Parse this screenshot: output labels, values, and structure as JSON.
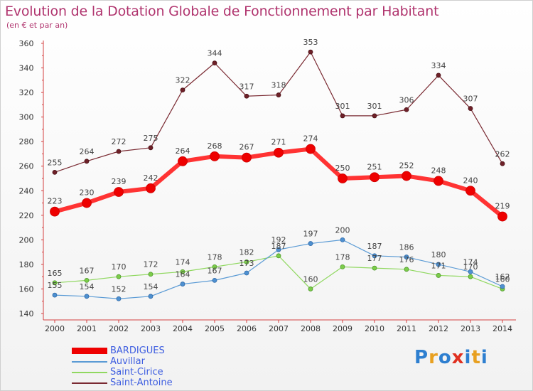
{
  "title": "Evolution de la Dotation Globale de Fonctionnement par Habitant",
  "subtitle": "(en € et par an)",
  "logo": "Proxiti",
  "chart_data": {
    "type": "line",
    "title": "Evolution de la Dotation Globale de Fonctionnement par Habitant",
    "subtitle": "(en € et par an)",
    "x": [
      "2000",
      "2001",
      "2002",
      "2003",
      "2004",
      "2005",
      "2006",
      "2007",
      "2008",
      "2009",
      "2010",
      "2011",
      "2012",
      "2013",
      "2014"
    ],
    "ylim": [
      140,
      360
    ],
    "yticks": [
      "140",
      "160",
      "180",
      "200",
      "220",
      "240",
      "260",
      "280",
      "300",
      "320",
      "340",
      "360"
    ],
    "grid": false,
    "legend_position": "bottom-left",
    "series": [
      {
        "name": "BARDIGUES",
        "color": "#ee0000",
        "values": [
          223,
          230,
          239,
          242,
          264,
          268,
          267,
          271,
          274,
          250,
          251,
          252,
          248,
          240,
          219
        ],
        "labels": [
          "223",
          "230",
          "239",
          "242",
          "264",
          "268",
          "267",
          "271",
          "274",
          "250",
          "251",
          "252",
          "248",
          "240",
          "219"
        ]
      },
      {
        "name": "Auvillar",
        "color": "#5b9bd5",
        "values": [
          155,
          154,
          152,
          154,
          164,
          167,
          173,
          192,
          197,
          200,
          187,
          186,
          180,
          174,
          162
        ],
        "labels": [
          "155",
          "154",
          "152",
          "154",
          "164",
          "167",
          "173",
          "192",
          "197",
          "200",
          "187",
          "186",
          "180",
          "174",
          "162"
        ]
      },
      {
        "name": "Saint-Cirice",
        "color": "#90d860",
        "values": [
          165,
          167,
          170,
          172,
          174,
          178,
          182,
          187,
          160,
          178,
          177,
          176,
          171,
          170,
          160
        ],
        "labels": [
          "165",
          "167",
          "170",
          "172",
          "174",
          "178",
          "182",
          "187",
          "160",
          "178",
          "177",
          "176",
          "171",
          "170",
          "160"
        ]
      },
      {
        "name": "Saint-Antoine",
        "color": "#7a2a32",
        "values": [
          255,
          264,
          272,
          275,
          322,
          344,
          317,
          318,
          353,
          301,
          301,
          306,
          334,
          307,
          262
        ],
        "labels": [
          "255",
          "264",
          "272",
          "275",
          "322",
          "344",
          "317",
          "318",
          "353",
          "301",
          "301",
          "306",
          "334",
          "307",
          "262"
        ]
      }
    ]
  }
}
